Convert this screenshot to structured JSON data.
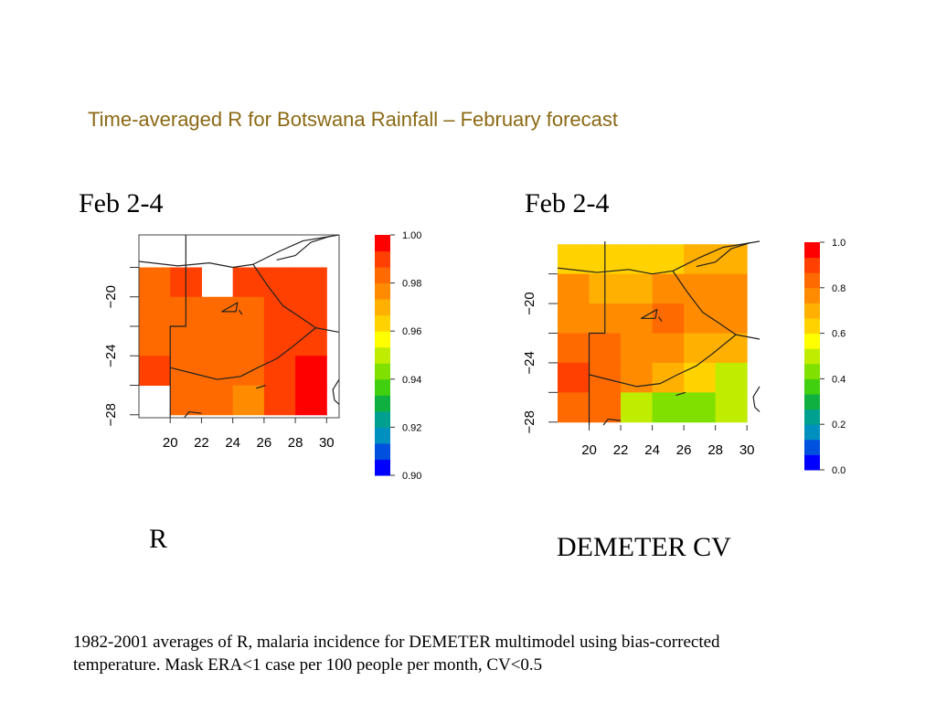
{
  "slide": {
    "title": "Time-averaged R for Botswana Rainfall – February forecast",
    "footnote_line1": "1982-2001 averages of R, malaria incidence for DEMETER multimodel using bias-corrected",
    "footnote_line2": "temperature. Mask ERA<1 case per 100 people per month, CV<0.5"
  },
  "chart_data": [
    {
      "type": "heatmap",
      "heading": "Feb 2-4",
      "caption": "R",
      "x_ticks": [
        20,
        22,
        24,
        26,
        28,
        30
      ],
      "y_ticks": [
        -20,
        -24,
        -28
      ],
      "x_cells": [
        19,
        21,
        23,
        25,
        27,
        29
      ],
      "y_cells": [
        -17,
        -19,
        -21,
        -23,
        -25,
        -27
      ],
      "values": [
        [
          null,
          null,
          null,
          null,
          null,
          null
        ],
        [
          0.985,
          0.992,
          null,
          0.99,
          0.992,
          0.992
        ],
        [
          0.985,
          0.985,
          0.985,
          0.985,
          0.99,
          0.992
        ],
        [
          0.985,
          0.985,
          0.985,
          0.985,
          0.99,
          0.992
        ],
        [
          0.99,
          0.985,
          0.985,
          0.985,
          0.99,
          0.997
        ],
        [
          null,
          0.985,
          0.985,
          0.98,
          0.99,
          0.997
        ]
      ],
      "colorbar": {
        "min": 0.9,
        "max": 1.0,
        "ticks": [
          "1.00",
          "0.98",
          "0.96",
          "0.94",
          "0.92",
          "0.90"
        ]
      }
    },
    {
      "type": "heatmap",
      "heading": "Feb 2-4",
      "caption": "DEMETER CV",
      "x_ticks": [
        20,
        22,
        24,
        26,
        28,
        30
      ],
      "y_ticks": [
        -20,
        -24,
        -28
      ],
      "x_cells": [
        19,
        21,
        23,
        25,
        27,
        29
      ],
      "y_cells": [
        -17,
        -19,
        -21,
        -23,
        -25,
        -27
      ],
      "values": [
        [
          0.62,
          0.66,
          0.66,
          0.66,
          0.7,
          0.7
        ],
        [
          0.74,
          0.72,
          0.72,
          0.78,
          0.76,
          0.74
        ],
        [
          0.78,
          0.76,
          0.74,
          0.8,
          0.78,
          0.74
        ],
        [
          0.86,
          0.8,
          0.74,
          0.78,
          0.72,
          0.7
        ],
        [
          0.88,
          0.8,
          0.78,
          0.68,
          0.64,
          0.5
        ],
        [
          0.84,
          0.8,
          0.5,
          0.46,
          0.46,
          0.48
        ]
      ],
      "colorbar": {
        "min": 0.0,
        "max": 1.0,
        "ticks": [
          "1.0",
          "0.8",
          "0.6",
          "0.4",
          "0.2",
          "0.0"
        ]
      }
    }
  ]
}
